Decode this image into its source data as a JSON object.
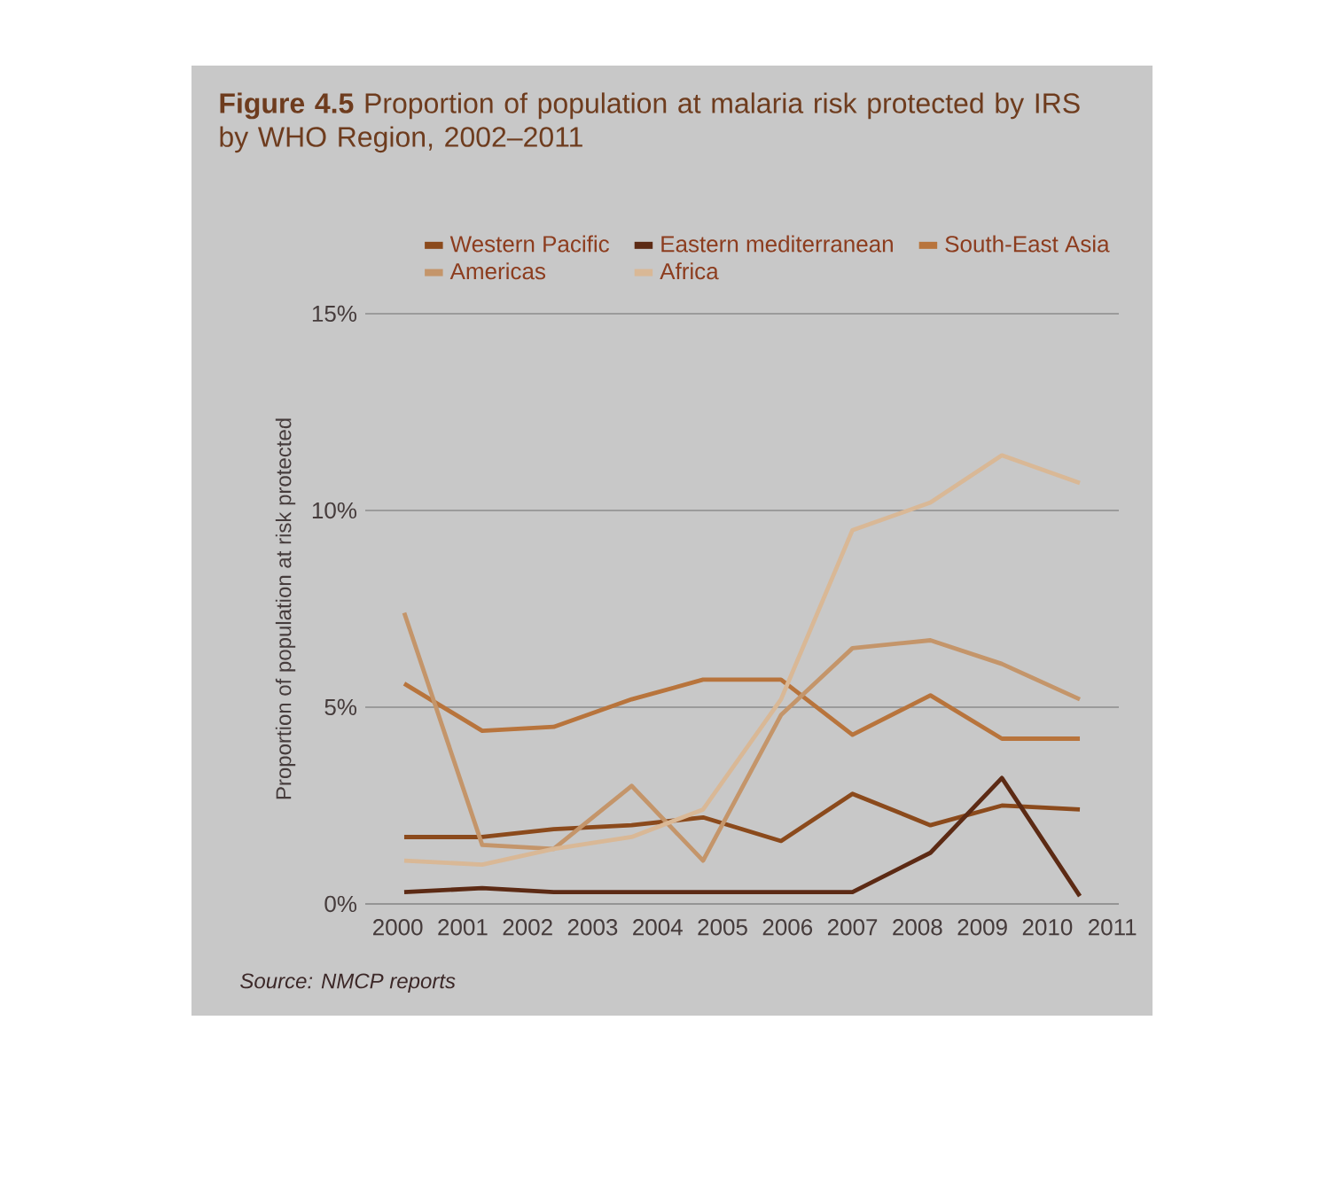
{
  "chart_data": {
    "type": "line",
    "title": "**Figure 4.5** Proportion of population at malaria risk protected by IRS by WHO Region, 2002–2011",
    "ylabel": "Proportion of population at risk protected",
    "annotations": [
      "Source: NMCP reports"
    ],
    "x": [
      2000.1,
      2001.3,
      2002.4,
      2003.6,
      2004.7,
      2005.9,
      2007.0,
      2008.2,
      2009.3,
      2010.5
    ],
    "xlim": [
      1999.5,
      2011.1
    ],
    "xticks": [
      2000,
      2001,
      2002,
      2003,
      2004,
      2005,
      2006,
      2007,
      2008,
      2009,
      2010,
      2011
    ],
    "ylim": [
      0,
      15
    ],
    "yticks": [
      {
        "value": 0,
        "label": "0%"
      },
      {
        "value": 5,
        "label": "5%"
      },
      {
        "value": 10,
        "label": "10%"
      },
      {
        "value": 15,
        "label": "15%"
      }
    ],
    "grid": "y",
    "legend": "top right",
    "series": [
      {
        "name": "Western Pacific",
        "color": "#8b4a1c",
        "values": [
          1.7,
          1.7,
          1.9,
          2.0,
          2.2,
          1.6,
          2.8,
          2.0,
          2.5,
          2.4
        ]
      },
      {
        "name": "Eastern mediterranean",
        "color": "#5c2a14",
        "values": [
          0.3,
          0.4,
          0.3,
          0.3,
          0.3,
          0.3,
          0.3,
          1.3,
          3.2,
          0.2
        ]
      },
      {
        "name": "South-East Asia",
        "color": "#b8743c",
        "values": [
          5.6,
          4.4,
          4.5,
          5.2,
          5.7,
          5.7,
          4.3,
          5.3,
          4.2,
          4.2
        ]
      },
      {
        "name": "Americas",
        "color": "#c4956a",
        "values": [
          7.4,
          1.5,
          1.4,
          3.0,
          1.1,
          4.8,
          6.5,
          6.7,
          6.1,
          5.2
        ]
      },
      {
        "name": "Africa",
        "color": "#d9b896",
        "values": [
          1.1,
          1.0,
          1.4,
          1.7,
          2.4,
          5.2,
          9.5,
          10.2,
          11.4,
          10.7
        ]
      }
    ]
  }
}
